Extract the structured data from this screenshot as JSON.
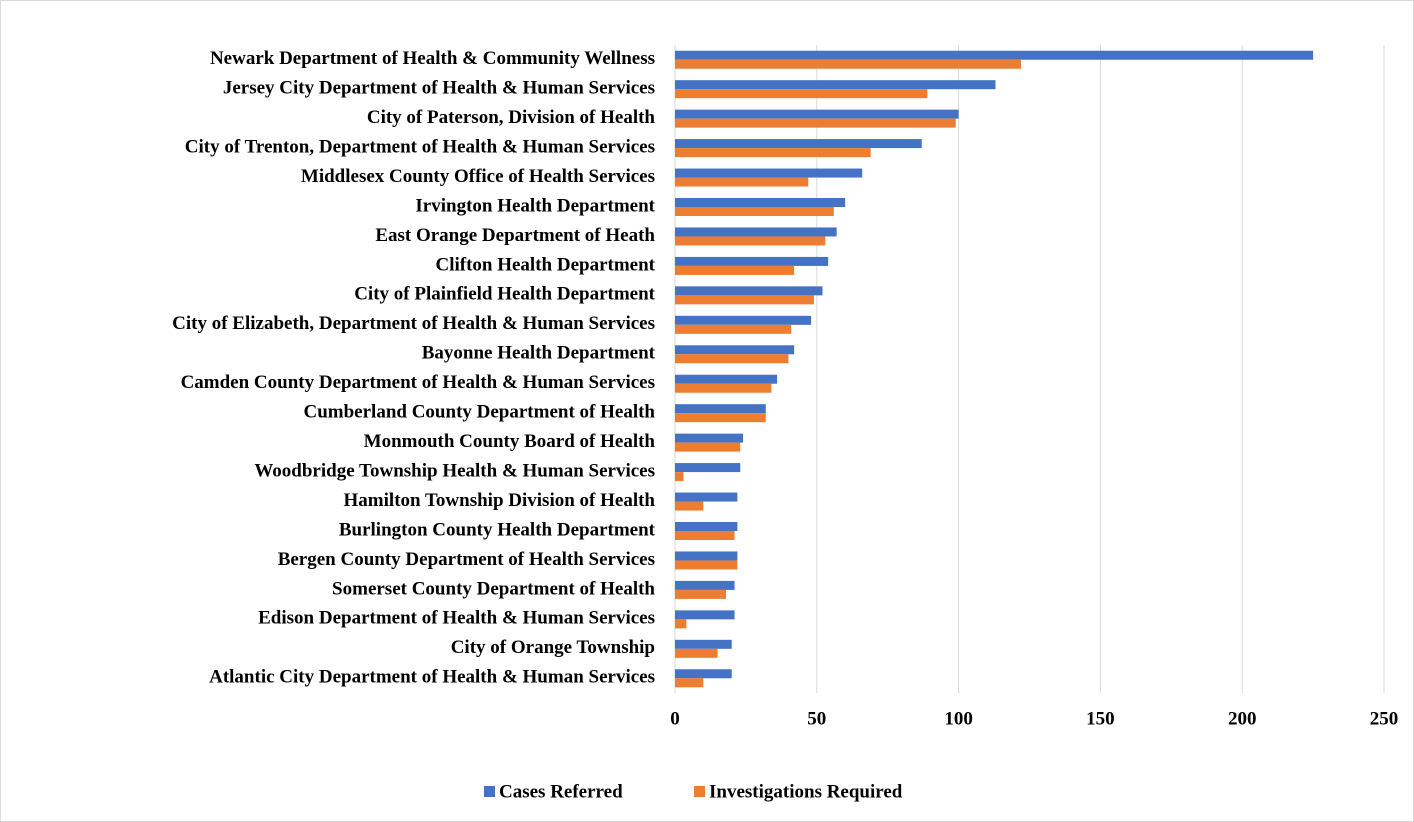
{
  "chart_data": {
    "type": "bar",
    "orientation": "horizontal",
    "categories": [
      "Newark Department of Health & Community Wellness",
      "Jersey City Department of Health & Human Services",
      "City of Paterson, Division of Health",
      "City of Trenton, Department of Health & Human Services",
      "Middlesex County Office of Health Services",
      "Irvington Health Department",
      "East Orange Department of Heath",
      "Clifton Health Department",
      "City of Plainfield Health Department",
      "City of Elizabeth, Department of Health & Human Services",
      "Bayonne Health Department",
      "Camden County Department of Health & Human Services",
      "Cumberland County Department of Health",
      "Monmouth County Board of Health",
      "Woodbridge Township Health & Human Services",
      "Hamilton Township Division of Health",
      "Burlington County Health Department",
      "Bergen County Department of Health Services",
      "Somerset County Department of Health",
      "Edison Department of Health & Human Services",
      "City of Orange Township",
      "Atlantic City Department of Health & Human Services"
    ],
    "series": [
      {
        "name": "Cases Referred",
        "color": "#4472c4",
        "values": [
          225,
          113,
          100,
          87,
          66,
          60,
          57,
          54,
          52,
          48,
          42,
          36,
          32,
          24,
          23,
          22,
          22,
          22,
          21,
          21,
          20,
          20
        ]
      },
      {
        "name": "Investigations Required",
        "color": "#ed7d31",
        "values": [
          122,
          89,
          99,
          69,
          47,
          56,
          53,
          42,
          49,
          41,
          40,
          34,
          32,
          23,
          3,
          10,
          21,
          22,
          18,
          4,
          15,
          10
        ]
      }
    ],
    "xlim": [
      0,
      250
    ],
    "xticks": [
      0,
      50,
      100,
      150,
      200,
      250
    ],
    "grid": true,
    "legend": "bottom"
  }
}
